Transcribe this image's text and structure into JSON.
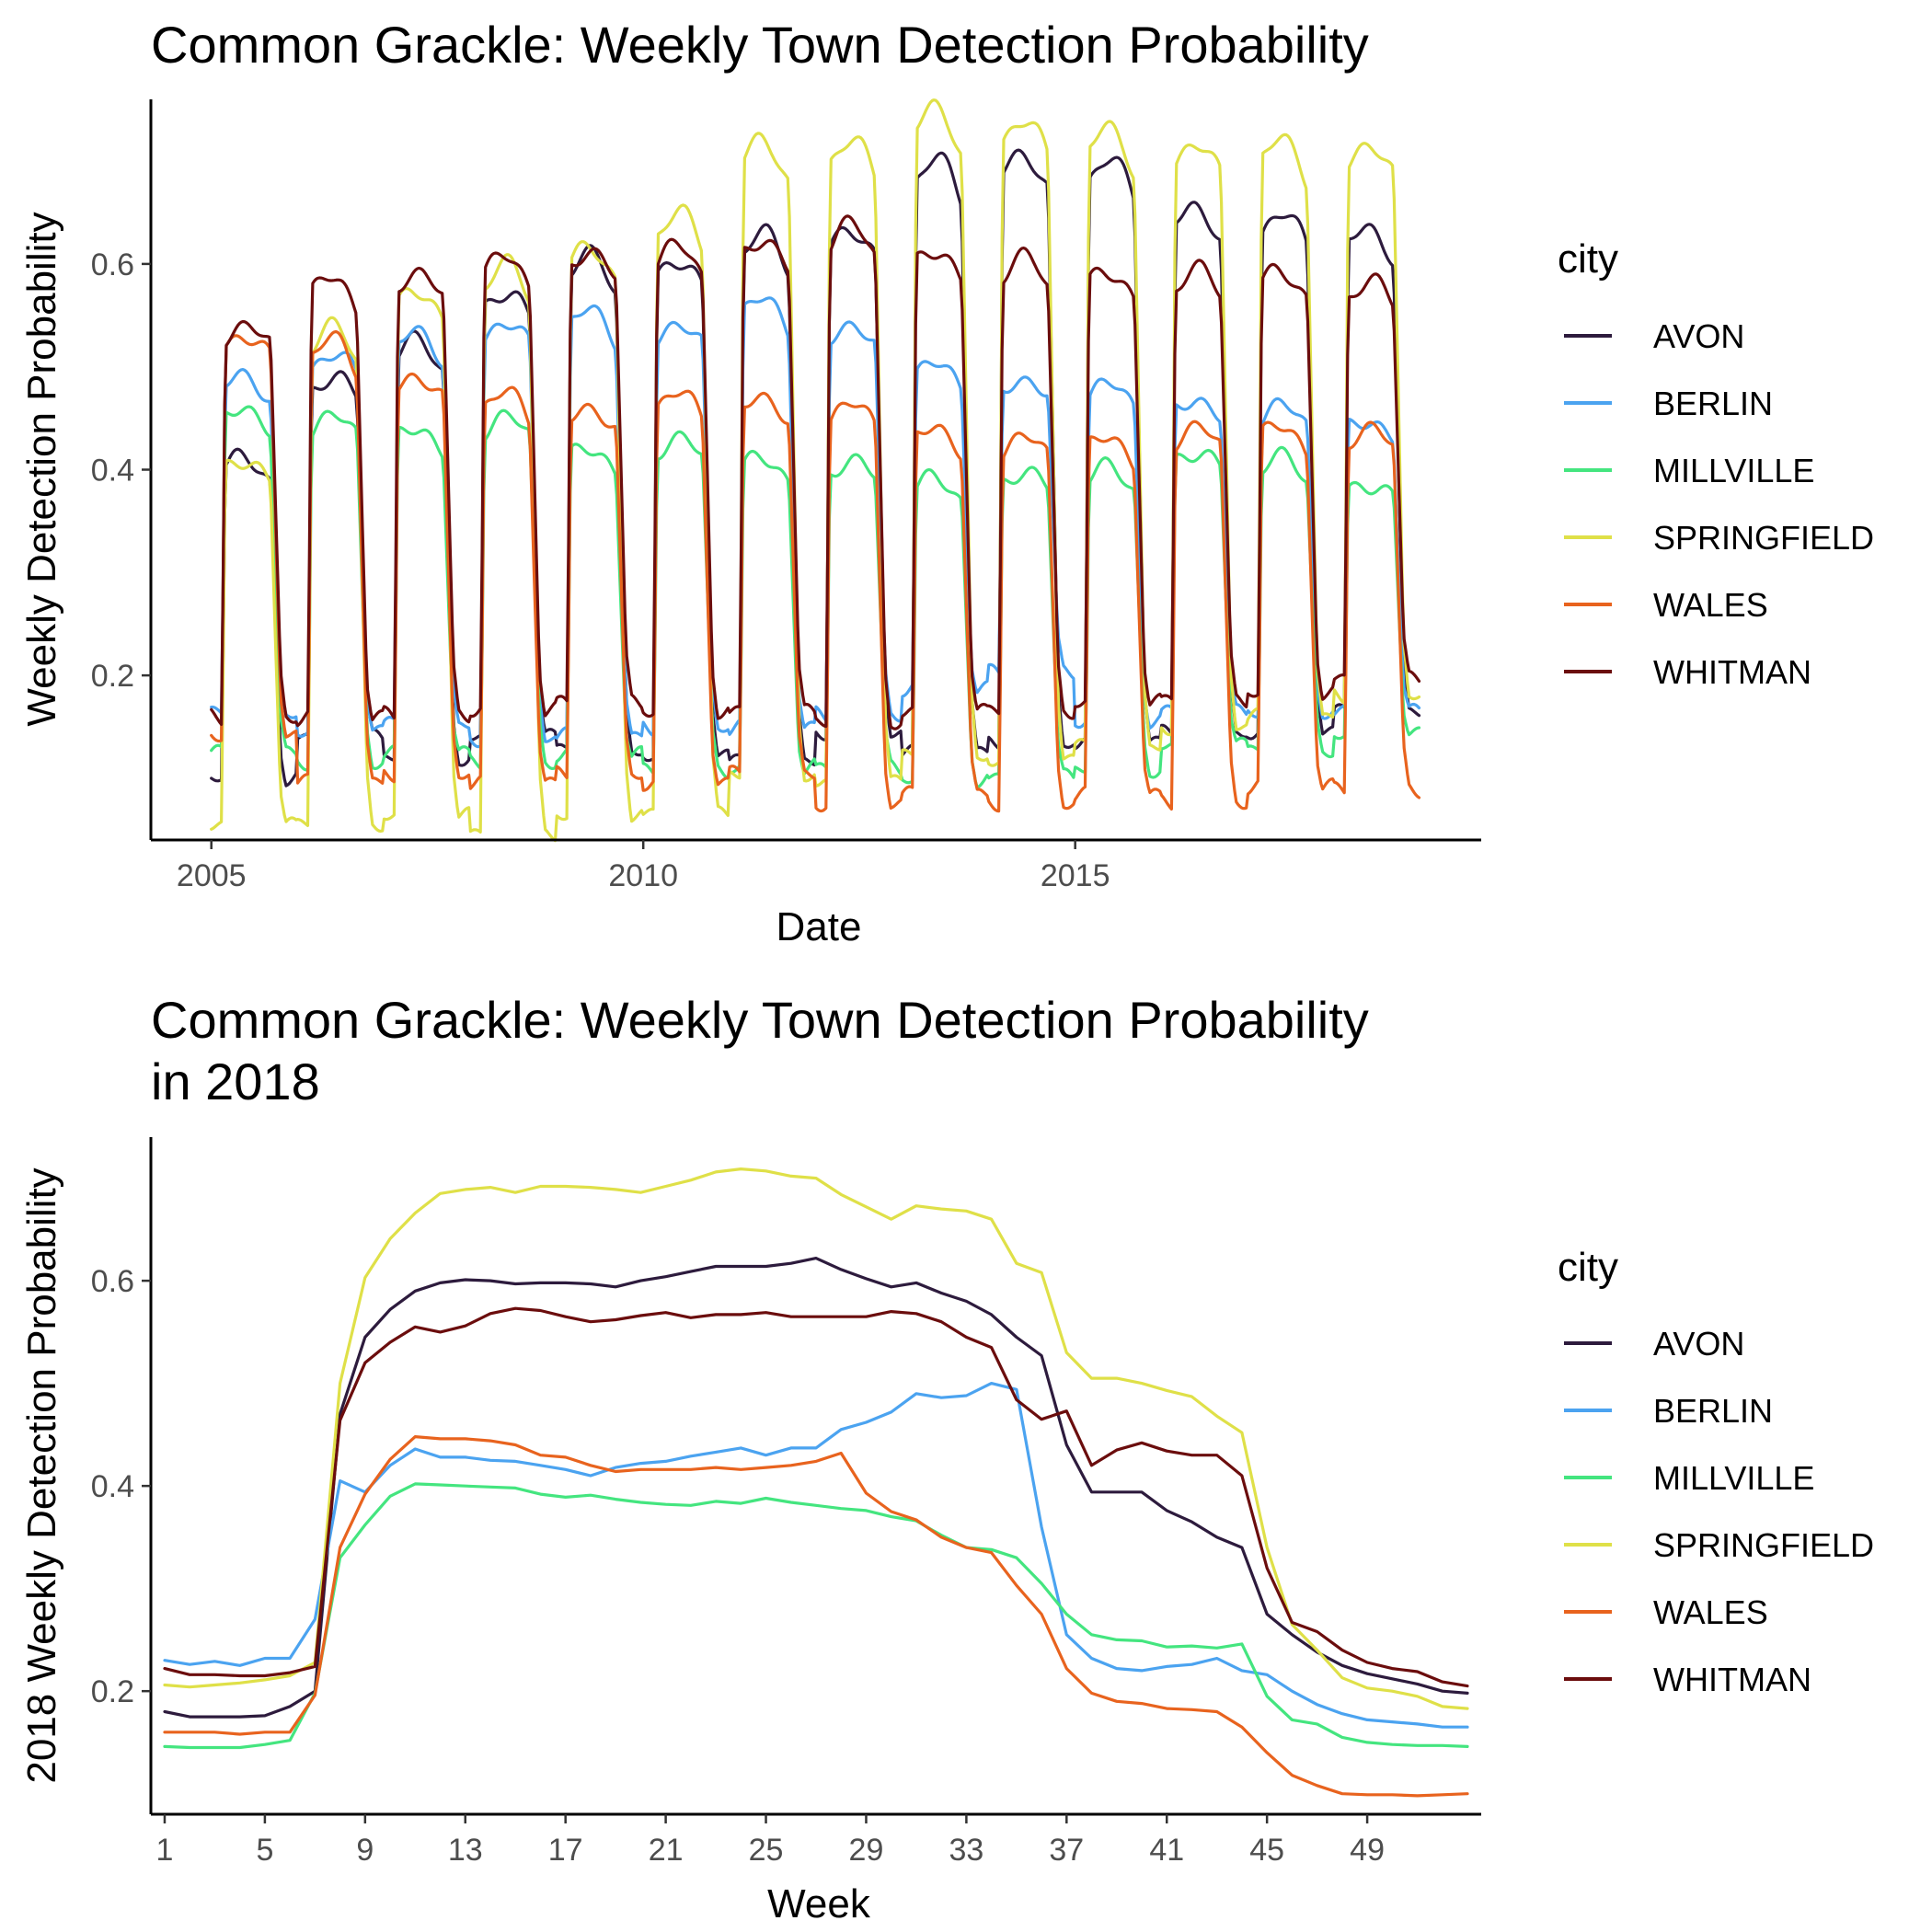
{
  "chart_data": [
    {
      "type": "line",
      "title": "Common Grackle: Weekly Town Detection Probability",
      "xlabel": "Date",
      "ylabel": "Weekly Detection Probability",
      "x_ticks": [
        "2005",
        "2010",
        "2015"
      ],
      "y_ticks": [
        "0.2",
        "0.4",
        "0.6"
      ],
      "xlim": [
        2004.3,
        2019.7
      ],
      "ylim": [
        0.04,
        0.76
      ],
      "grid": false,
      "legend": {
        "title": "city",
        "placement": "right"
      },
      "x_start_year": 2005,
      "years": 14,
      "series": [
        {
          "name": "AVON",
          "color": "#2d1b3d",
          "offseason": [
            0.1,
            0.14,
            0.12,
            0.14,
            0.13,
            0.12,
            0.12,
            0.14,
            0.13,
            0.13,
            0.14,
            0.14,
            0.15,
            0.16
          ],
          "peak": [
            0.4,
            0.48,
            0.51,
            0.56,
            0.59,
            0.59,
            0.61,
            0.62,
            0.68,
            0.69,
            0.68,
            0.64,
            0.63,
            0.62
          ]
        },
        {
          "name": "BERLIN",
          "color": "#4ba3f0",
          "offseason": [
            0.16,
            0.15,
            0.15,
            0.14,
            0.14,
            0.15,
            0.15,
            0.16,
            0.19,
            0.2,
            0.16,
            0.16,
            0.17,
            0.16
          ],
          "peak": [
            0.48,
            0.5,
            0.52,
            0.53,
            0.54,
            0.53,
            0.55,
            0.53,
            0.49,
            0.48,
            0.47,
            0.46,
            0.45,
            0.44
          ]
        },
        {
          "name": "MILLVILLE",
          "color": "#44e57f",
          "offseason": [
            0.12,
            0.12,
            0.12,
            0.12,
            0.12,
            0.11,
            0.11,
            0.11,
            0.1,
            0.1,
            0.11,
            0.13,
            0.13,
            0.14
          ],
          "peak": [
            0.45,
            0.44,
            0.43,
            0.44,
            0.41,
            0.42,
            0.4,
            0.4,
            0.38,
            0.39,
            0.39,
            0.41,
            0.4,
            0.38
          ]
        },
        {
          "name": "SPRINGFIELD",
          "color": "#dfe048",
          "offseason": [
            0.05,
            0.06,
            0.06,
            0.05,
            0.06,
            0.07,
            0.1,
            0.1,
            0.12,
            0.12,
            0.13,
            0.15,
            0.16,
            0.18
          ],
          "peak": [
            0.4,
            0.52,
            0.56,
            0.58,
            0.6,
            0.63,
            0.7,
            0.7,
            0.73,
            0.72,
            0.71,
            0.7,
            0.7,
            0.7
          ]
        },
        {
          "name": "WALES",
          "color": "#e8631e",
          "offseason": [
            0.14,
            0.1,
            0.1,
            0.1,
            0.1,
            0.1,
            0.1,
            0.08,
            0.08,
            0.08,
            0.08,
            0.08,
            0.09,
            0.09
          ],
          "peak": [
            0.52,
            0.51,
            0.48,
            0.46,
            0.45,
            0.46,
            0.46,
            0.45,
            0.43,
            0.42,
            0.42,
            0.43,
            0.43,
            0.43
          ]
        },
        {
          "name": "WHITMAN",
          "color": "#6b0d0d",
          "offseason": [
            0.16,
            0.16,
            0.16,
            0.17,
            0.17,
            0.17,
            0.16,
            0.16,
            0.16,
            0.17,
            0.17,
            0.18,
            0.18,
            0.2
          ],
          "peak": [
            0.53,
            0.57,
            0.58,
            0.59,
            0.6,
            0.6,
            0.61,
            0.62,
            0.6,
            0.59,
            0.58,
            0.58,
            0.58,
            0.57
          ]
        }
      ]
    },
    {
      "type": "line",
      "title": "Common Grackle: Weekly Town Detection Probability",
      "title_line2": "in 2018",
      "xlabel": "Week",
      "ylabel": "2018 Weekly Detection Probability",
      "x_ticks": [
        1,
        5,
        9,
        13,
        17,
        21,
        25,
        29,
        33,
        37,
        41,
        45,
        49
      ],
      "y_ticks": [
        "0.2",
        "0.4",
        "0.6"
      ],
      "xlim": [
        0.45,
        53.55
      ],
      "ylim": [
        0.08,
        0.74
      ],
      "grid": false,
      "legend": {
        "title": "city",
        "placement": "right"
      },
      "series": [
        {
          "name": "AVON",
          "color": "#2d1b3d",
          "values": [
            0.18,
            0.175,
            0.175,
            0.175,
            0.176,
            0.185,
            0.2,
            0.47,
            0.545,
            0.572,
            0.59,
            0.598,
            0.601,
            0.6,
            0.597,
            0.598,
            0.598,
            0.597,
            0.594,
            0.6,
            0.604,
            0.609,
            0.614,
            0.614,
            0.614,
            0.617,
            0.622,
            0.611,
            0.602,
            0.594,
            0.598,
            0.588,
            0.58,
            0.567,
            0.545,
            0.527,
            0.44,
            0.394,
            0.394,
            0.394,
            0.376,
            0.365,
            0.35,
            0.34,
            0.275,
            0.255,
            0.238,
            0.225,
            0.217,
            0.212,
            0.207,
            0.2,
            0.198
          ]
        },
        {
          "name": "BERLIN",
          "color": "#4ba3f0",
          "values": [
            0.23,
            0.226,
            0.229,
            0.225,
            0.232,
            0.232,
            0.27,
            0.405,
            0.394,
            0.42,
            0.436,
            0.428,
            0.428,
            0.425,
            0.424,
            0.42,
            0.416,
            0.41,
            0.418,
            0.422,
            0.424,
            0.429,
            0.433,
            0.437,
            0.43,
            0.437,
            0.437,
            0.455,
            0.462,
            0.472,
            0.49,
            0.486,
            0.488,
            0.5,
            0.494,
            0.36,
            0.255,
            0.232,
            0.222,
            0.22,
            0.224,
            0.226,
            0.232,
            0.22,
            0.216,
            0.2,
            0.187,
            0.178,
            0.172,
            0.17,
            0.168,
            0.165,
            0.165
          ]
        },
        {
          "name": "MILLVILLE",
          "color": "#44e57f",
          "values": [
            0.146,
            0.145,
            0.145,
            0.145,
            0.148,
            0.152,
            0.198,
            0.33,
            0.362,
            0.39,
            0.402,
            0.401,
            0.4,
            0.399,
            0.398,
            0.392,
            0.389,
            0.391,
            0.387,
            0.384,
            0.382,
            0.381,
            0.385,
            0.383,
            0.388,
            0.384,
            0.381,
            0.378,
            0.376,
            0.37,
            0.366,
            0.352,
            0.34,
            0.338,
            0.33,
            0.305,
            0.275,
            0.255,
            0.25,
            0.249,
            0.243,
            0.244,
            0.242,
            0.246,
            0.195,
            0.172,
            0.168,
            0.155,
            0.15,
            0.148,
            0.147,
            0.147,
            0.146
          ]
        },
        {
          "name": "SPRINGFIELD",
          "color": "#dfe048",
          "values": [
            0.206,
            0.204,
            0.206,
            0.208,
            0.211,
            0.215,
            0.228,
            0.5,
            0.603,
            0.641,
            0.666,
            0.685,
            0.689,
            0.691,
            0.686,
            0.692,
            0.692,
            0.691,
            0.689,
            0.686,
            0.692,
            0.698,
            0.706,
            0.709,
            0.707,
            0.702,
            0.7,
            0.684,
            0.672,
            0.66,
            0.673,
            0.67,
            0.668,
            0.66,
            0.617,
            0.608,
            0.53,
            0.505,
            0.505,
            0.5,
            0.493,
            0.487,
            0.468,
            0.452,
            0.34,
            0.265,
            0.24,
            0.213,
            0.203,
            0.2,
            0.195,
            0.185,
            0.183
          ]
        },
        {
          "name": "WALES",
          "color": "#e8631e",
          "values": [
            0.16,
            0.16,
            0.16,
            0.158,
            0.16,
            0.16,
            0.196,
            0.34,
            0.392,
            0.426,
            0.448,
            0.446,
            0.446,
            0.444,
            0.44,
            0.43,
            0.428,
            0.42,
            0.414,
            0.416,
            0.416,
            0.416,
            0.418,
            0.416,
            0.418,
            0.42,
            0.424,
            0.432,
            0.393,
            0.375,
            0.367,
            0.35,
            0.34,
            0.335,
            0.303,
            0.275,
            0.222,
            0.198,
            0.19,
            0.188,
            0.183,
            0.182,
            0.18,
            0.165,
            0.14,
            0.118,
            0.108,
            0.1,
            0.099,
            0.099,
            0.098,
            0.099,
            0.1
          ]
        },
        {
          "name": "WHITMAN",
          "color": "#6b0d0d",
          "values": [
            0.222,
            0.216,
            0.216,
            0.215,
            0.215,
            0.218,
            0.224,
            0.464,
            0.52,
            0.54,
            0.555,
            0.55,
            0.556,
            0.568,
            0.573,
            0.571,
            0.565,
            0.56,
            0.562,
            0.566,
            0.569,
            0.564,
            0.567,
            0.567,
            0.569,
            0.565,
            0.565,
            0.565,
            0.565,
            0.57,
            0.568,
            0.56,
            0.545,
            0.535,
            0.484,
            0.465,
            0.473,
            0.42,
            0.435,
            0.442,
            0.434,
            0.43,
            0.43,
            0.41,
            0.32,
            0.267,
            0.258,
            0.24,
            0.228,
            0.222,
            0.219,
            0.209,
            0.205
          ]
        }
      ]
    }
  ]
}
